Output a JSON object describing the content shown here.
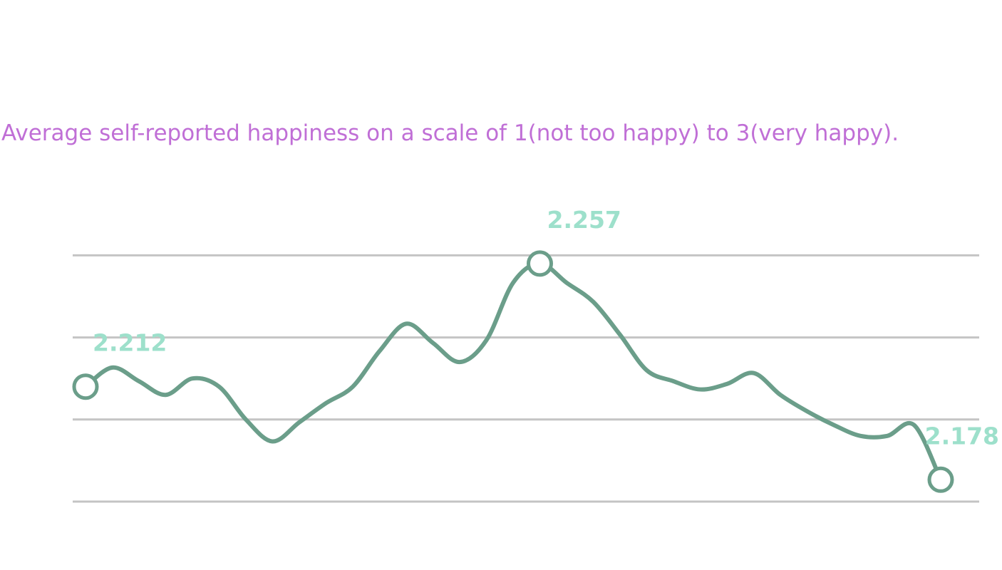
{
  "chart_data": {
    "type": "line",
    "title": "",
    "subtitle": "Average self-reported happiness on a scale of 1(not too happy) to 3(very happy).",
    "xlabel": "",
    "ylabel": "",
    "x": [
      1,
      2,
      3,
      4,
      5,
      6,
      7,
      8,
      9,
      10,
      11,
      12,
      13,
      14,
      15,
      16,
      17,
      18,
      19,
      20,
      21,
      22,
      23,
      24,
      25,
      26,
      27,
      28,
      29,
      30,
      31,
      32,
      33
    ],
    "series": [
      {
        "values": [
          2.212,
          2.219,
          2.214,
          2.209,
          2.215,
          2.212,
          2.2,
          2.192,
          2.199,
          2.206,
          2.212,
          2.225,
          2.235,
          2.228,
          2.221,
          2.229,
          2.25,
          2.257,
          2.25,
          2.243,
          2.231,
          2.218,
          2.214,
          2.211,
          2.213,
          2.217,
          2.209,
          2.203,
          2.198,
          2.194,
          2.194,
          2.198,
          2.178
        ],
        "labels": [
          "2.212",
          "",
          "",
          "",
          "",
          "",
          "",
          "",
          "",
          "",
          "",
          "",
          "",
          "",
          "",
          "",
          "",
          "2.257",
          "",
          "",
          "",
          "",
          "",
          "",
          "",
          "",
          "",
          "",
          "",
          "",
          "",
          "",
          "2.178"
        ]
      }
    ],
    "ylim": [
      2.17,
      2.27
    ],
    "yticks": [
      2.17,
      2.2,
      2.23,
      2.26
    ],
    "tick_labels_shown": false,
    "grid": true,
    "legend": "none",
    "colors": {
      "line": "#6b9e8a",
      "marker_fill": "#ffffff",
      "data_label": "#9de0cb",
      "subtitle": "#c06fd6",
      "grid": "#c4c4c4"
    }
  }
}
